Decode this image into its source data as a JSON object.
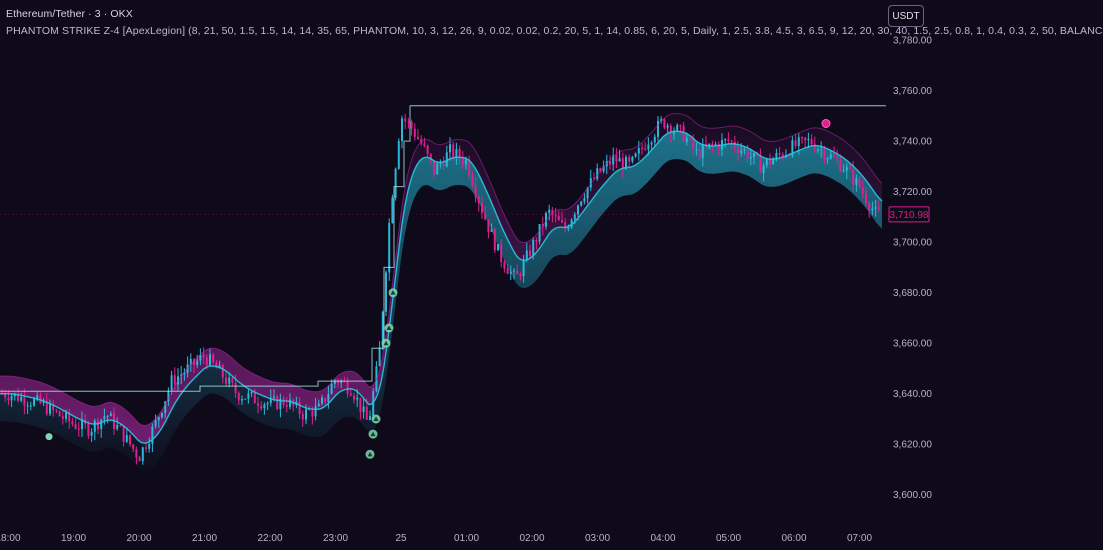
{
  "header": {
    "title": "Ethereum/Tether · 3 · OKX",
    "indicator": "PHANTOM STRIKE Z-4 [ApexLegion] (8, 21, 50, 1.5, 1.5, 14, 14, 35, 65, PHANTOM, 10, 3, 12, 26, 9, 0.02, 0.02, 0.2, 20, 5, 1, 14, 0.85, 6, 20, 5, Daily, 1, 2.5, 3.8, 4.5, 3, 6.5, 9, 12, 20, 30, 40, 1.5, 2.5, 0.8, 1, 0.4, 0.3, 2, 50, BALANC"
  },
  "currency_button": "USDT",
  "colors": {
    "background": "#0e0a1a",
    "bull_candle": "#2bb8d8",
    "bear_candle": "#e0208e",
    "band_cyan": "#29c8e6",
    "band_magenta": "#b02aa6",
    "trend_line": "#a8ecec",
    "signal_marker": "#7fd8b0",
    "sell_dot": "#e0208e",
    "price_label": "#d81f8a"
  },
  "chart_data": {
    "type": "line",
    "title": "Ethereum/Tether · 3 · OKX",
    "series": [
      {
        "name": "",
        "x": [
          "18:00",
          "18:30",
          "19:00",
          "19:15",
          "19:30",
          "19:45",
          "20:00",
          "20:15",
          "20:30",
          "20:45",
          "21:00",
          "21:15",
          "21:30",
          "21:45",
          "22:00",
          "22:15",
          "22:30",
          "22:45",
          "23:00",
          "23:15",
          "23:30",
          "23:40",
          "23:50",
          "00:00",
          "00:10",
          "00:20",
          "00:30",
          "00:45",
          "01:00",
          "01:15",
          "01:30",
          "01:45",
          "02:00",
          "02:15",
          "02:30",
          "02:45",
          "03:00",
          "03:15",
          "03:30",
          "03:45",
          "04:00",
          "04:10",
          "04:20",
          "04:30",
          "04:45",
          "05:00",
          "05:15",
          "05:30",
          "05:45",
          "06:00",
          "06:15",
          "06:30",
          "06:45",
          "07:00",
          "07:15"
        ],
        "values": [
          3640,
          3636,
          3628,
          3626,
          3632,
          3624,
          3615,
          3628,
          3645,
          3650,
          3655,
          3648,
          3640,
          3638,
          3636,
          3637,
          3632,
          3634,
          3646,
          3642,
          3628,
          3655,
          3712,
          3750,
          3745,
          3738,
          3728,
          3736,
          3732,
          3712,
          3695,
          3685,
          3698,
          3712,
          3705,
          3718,
          3727,
          3733,
          3730,
          3740,
          3748,
          3745,
          3742,
          3735,
          3738,
          3740,
          3736,
          3730,
          3734,
          3738,
          3740,
          3735,
          3730,
          3722,
          3711
        ]
      }
    ],
    "x_ticks": [
      "18:00",
      "19:00",
      "20:00",
      "21:00",
      "22:00",
      "23:00",
      "25",
      "01:00",
      "02:00",
      "03:00",
      "04:00",
      "05:00",
      "06:00",
      "07:00"
    ],
    "y_ticks": [
      "3,600.00",
      "3,620.00",
      "3,640.00",
      "3,660.00",
      "3,680.00",
      "3,700.00",
      "3,720.00",
      "3,740.00",
      "3,760.00",
      "3,780.00"
    ],
    "ylim": [
      3590,
      3784
    ],
    "last_price": 3710.98,
    "last_price_label": "3,710.98",
    "resistance_level": 3754,
    "xlabel": "",
    "ylabel": "",
    "grid": false
  }
}
